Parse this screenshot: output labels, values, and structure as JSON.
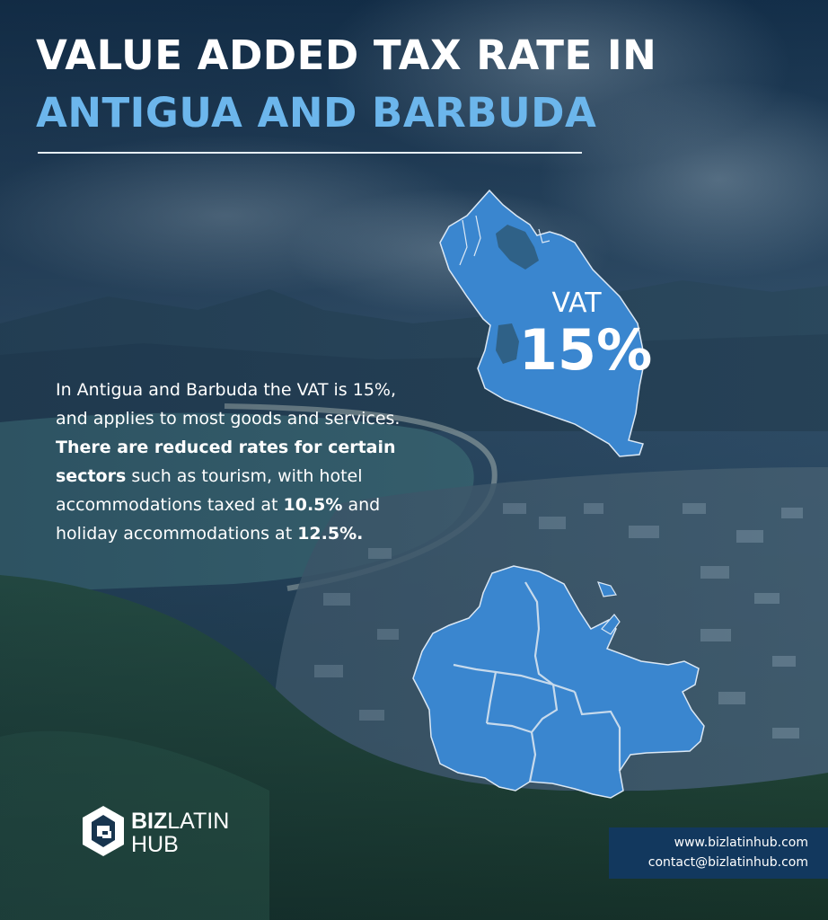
{
  "header": {
    "title_line1": "VALUE ADDED TAX RATE IN",
    "title_line2": "ANTIGUA AND BARBUDA"
  },
  "body": {
    "p1": "In Antigua and Barbuda the VAT is 15%, and applies to most goods and services. ",
    "b1": "There are reduced rates for certain sectors",
    "p2": " such as tourism, with hotel accommodations taxed at ",
    "b2": "10.5%",
    "p3": " and holiday accommodations at ",
    "b3": "12.5%."
  },
  "map": {
    "vat_label": "VAT",
    "vat_value": "15%",
    "island_color": "#3a86cf"
  },
  "logo": {
    "word_biz": "BIZ",
    "word_latin": "LATIN",
    "word_hub": "HUB"
  },
  "contact": {
    "website": "www.bizlatinhub.com",
    "email": "contact@bizlatinhub.com"
  },
  "colors": {
    "title_accent": "#6cb6ec",
    "contact_box": "#12385e"
  }
}
